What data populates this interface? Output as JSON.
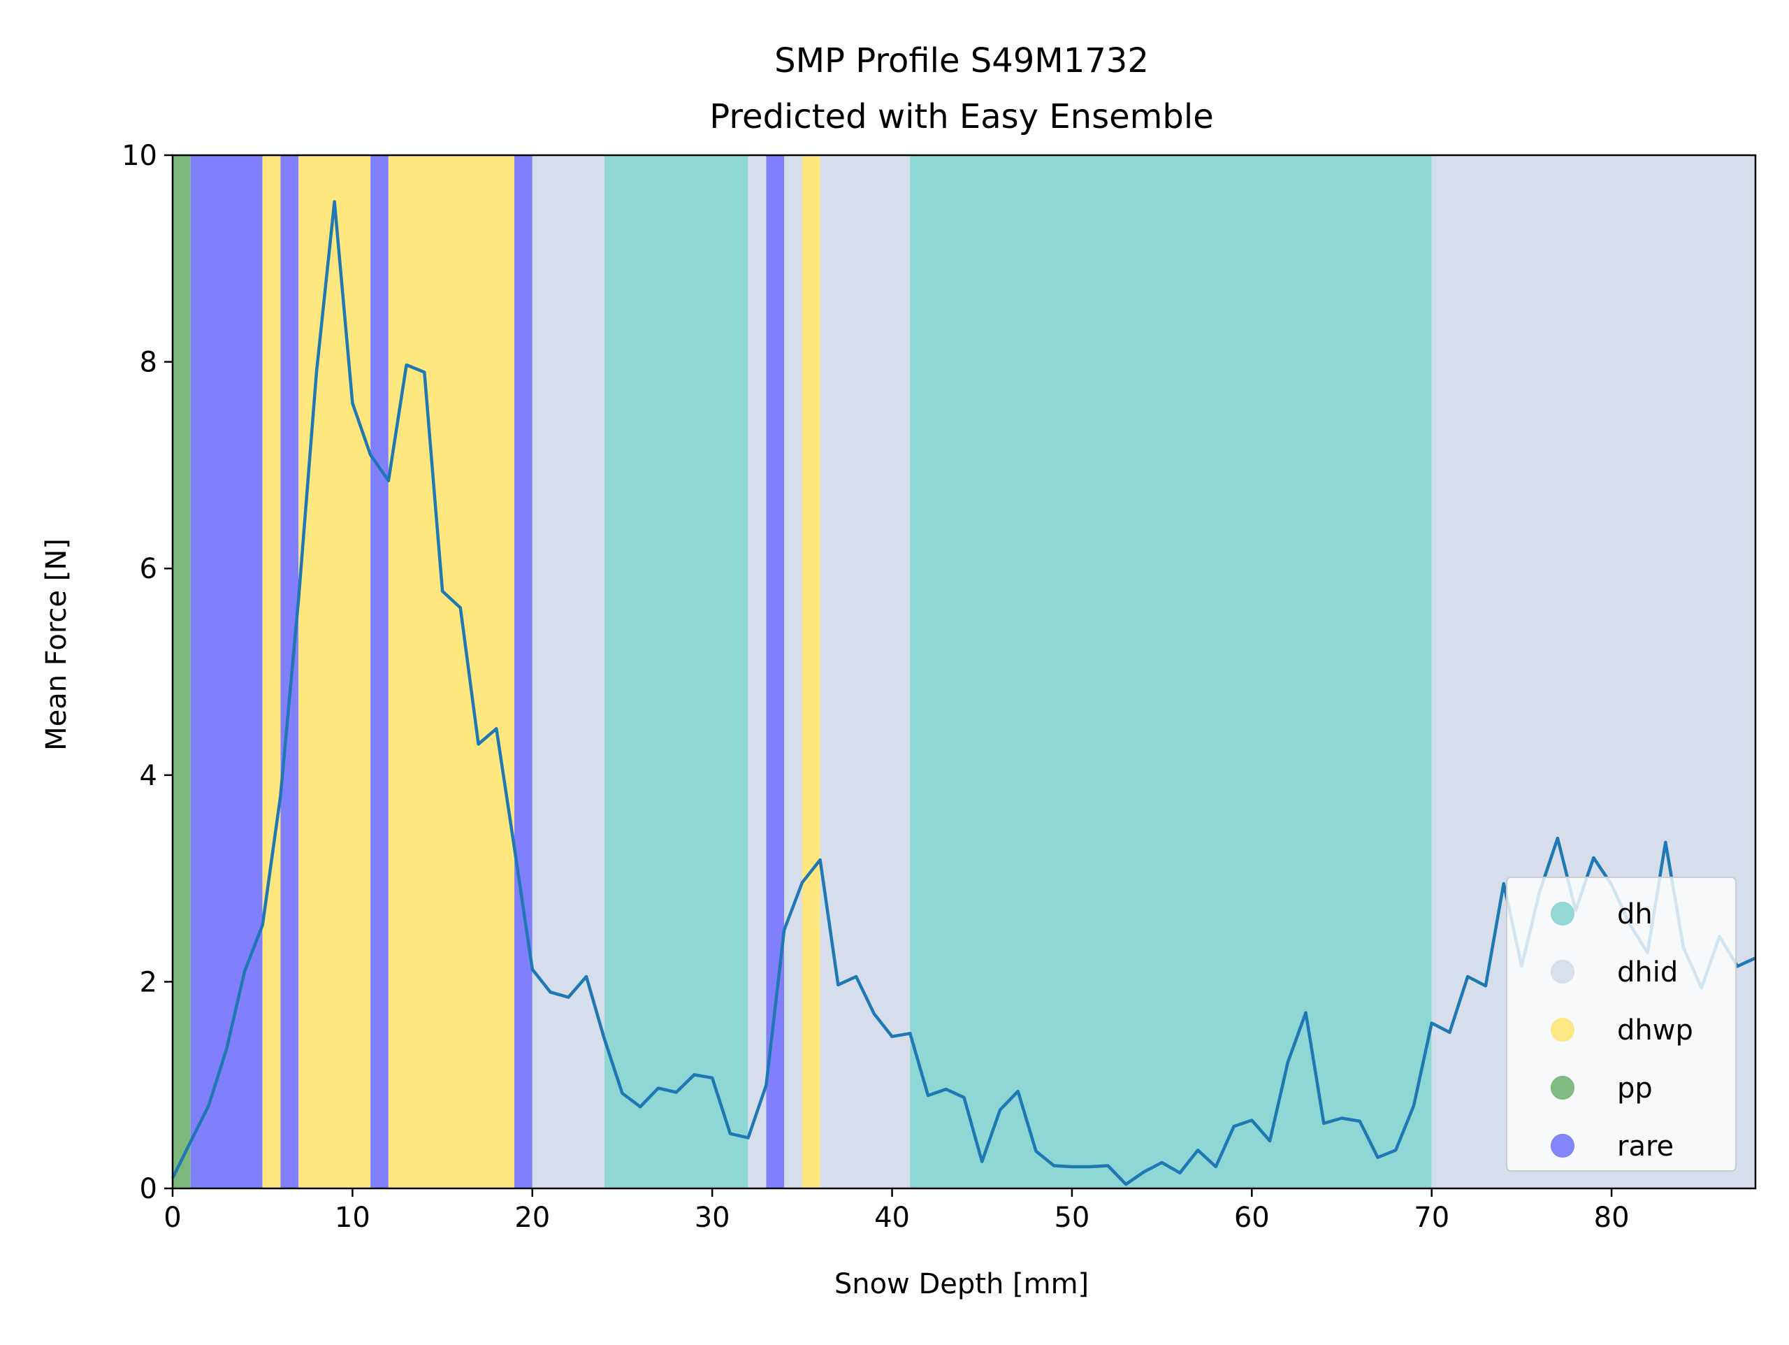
{
  "chart_data": {
    "type": "line",
    "title": "SMP Profile S49M1732",
    "subtitle": "Predicted with Easy Ensemble",
    "xlabel": "Snow Depth [mm]",
    "ylabel": "Mean Force [N]",
    "xlim": [
      0,
      88
    ],
    "ylim": [
      0,
      10
    ],
    "xticks": [
      0,
      10,
      20,
      30,
      40,
      50,
      60,
      70,
      80
    ],
    "yticks": [
      0,
      2,
      4,
      6,
      8,
      10
    ],
    "grid": false,
    "legend_position": "bottom-right",
    "legend": [
      {
        "label": "dh",
        "color": "#8fd7d4"
      },
      {
        "label": "dhid",
        "color": "#d5deea"
      },
      {
        "label": "dhwp",
        "color": "#fde77e"
      },
      {
        "label": "pp",
        "color": "#7cb87c"
      },
      {
        "label": "rare",
        "color": "#8080fc"
      }
    ],
    "bands": [
      {
        "label": "pp",
        "start": 0,
        "end": 1
      },
      {
        "label": "rare",
        "start": 1,
        "end": 5
      },
      {
        "label": "dhwp",
        "start": 5,
        "end": 6
      },
      {
        "label": "rare",
        "start": 6,
        "end": 7
      },
      {
        "label": "dhwp",
        "start": 7,
        "end": 11
      },
      {
        "label": "rare",
        "start": 11,
        "end": 12
      },
      {
        "label": "dhwp",
        "start": 12,
        "end": 19
      },
      {
        "label": "rare",
        "start": 19,
        "end": 20
      },
      {
        "label": "dhid",
        "start": 20,
        "end": 24
      },
      {
        "label": "dh",
        "start": 24,
        "end": 32
      },
      {
        "label": "dhid",
        "start": 32,
        "end": 33
      },
      {
        "label": "rare",
        "start": 33,
        "end": 34
      },
      {
        "label": "dhid",
        "start": 34,
        "end": 35
      },
      {
        "label": "dhwp",
        "start": 35,
        "end": 36
      },
      {
        "label": "dhid",
        "start": 36,
        "end": 41
      },
      {
        "label": "dh",
        "start": 41,
        "end": 70
      },
      {
        "label": "dhid",
        "start": 70,
        "end": 88
      }
    ],
    "series": [
      {
        "line_color": "#1f77b4",
        "x": [
          0,
          1,
          2,
          3,
          4,
          5,
          6,
          7,
          8,
          9,
          10,
          11,
          12,
          13,
          14,
          15,
          16,
          17,
          18,
          19,
          20,
          21,
          22,
          23,
          24,
          25,
          26,
          27,
          28,
          29,
          30,
          31,
          32,
          33,
          34,
          35,
          36,
          37,
          38,
          39,
          40,
          41,
          42,
          43,
          44,
          45,
          46,
          47,
          48,
          49,
          50,
          51,
          52,
          53,
          54,
          55,
          56,
          57,
          58,
          59,
          60,
          61,
          62,
          63,
          64,
          65,
          66,
          67,
          68,
          69,
          70,
          71,
          72,
          73,
          74,
          75,
          76,
          77,
          78,
          79,
          80,
          81,
          82,
          83,
          84,
          85,
          86,
          87,
          88
        ],
        "y": [
          0.1,
          0.45,
          0.8,
          1.35,
          2.1,
          2.55,
          3.8,
          5.7,
          7.9,
          9.55,
          7.6,
          7.1,
          6.85,
          7.97,
          7.9,
          5.78,
          5.62,
          4.3,
          4.45,
          3.3,
          2.12,
          1.9,
          1.85,
          2.05,
          1.45,
          0.92,
          0.79,
          0.97,
          0.93,
          1.1,
          1.07,
          0.53,
          0.49,
          1.0,
          2.5,
          2.96,
          3.18,
          1.97,
          2.05,
          1.69,
          1.47,
          1.5,
          0.9,
          0.96,
          0.88,
          0.26,
          0.76,
          0.94,
          0.36,
          0.22,
          0.21,
          0.21,
          0.22,
          0.04,
          0.16,
          0.25,
          0.15,
          0.37,
          0.21,
          0.6,
          0.66,
          0.46,
          1.22,
          1.7,
          0.63,
          0.68,
          0.65,
          0.3,
          0.37,
          0.8,
          1.6,
          1.51,
          2.05,
          1.96,
          2.95,
          2.15,
          2.87,
          3.39,
          2.69,
          3.2,
          2.94,
          2.56,
          2.28,
          3.35,
          2.33,
          1.94,
          2.44,
          2.15,
          2.23
        ]
      }
    ]
  }
}
